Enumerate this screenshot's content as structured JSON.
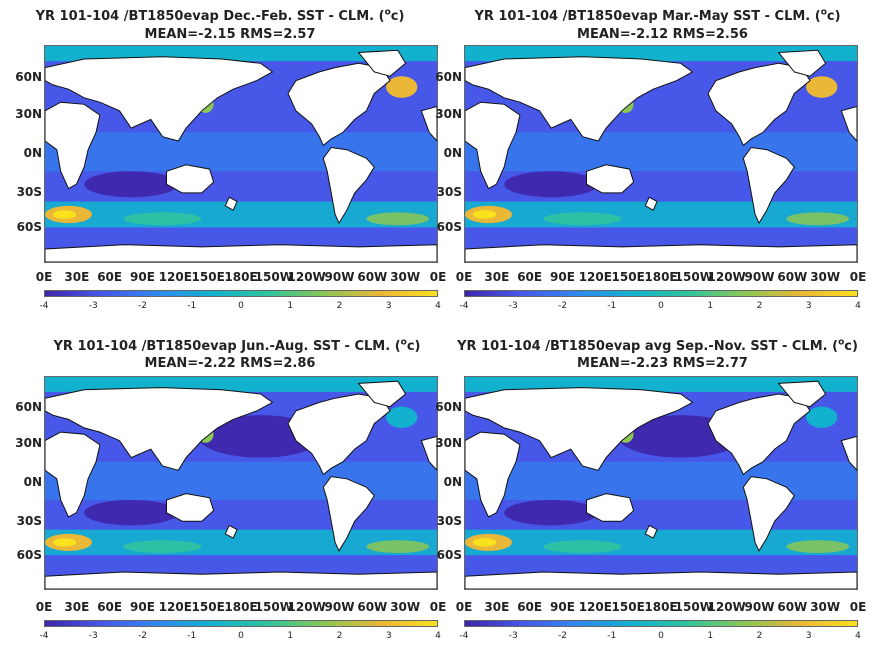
{
  "panels": [
    {
      "title_line1": "YR 101-104 /BT1850evap  Dec.-Feb. SST - CLM. (",
      "unit_sup": "o",
      "unit_end": "c)",
      "title_line2": "MEAN=-2.15   RMS=2.57"
    },
    {
      "title_line1": "YR 101-104 /BT1850evap Mar.-May SST - CLM. (",
      "unit_sup": "o",
      "unit_end": "c)",
      "title_line2": "MEAN=-2.12   RMS=2.56"
    },
    {
      "title_line1": "YR 101-104 /BT1850evap Jun.-Aug. SST - CLM. (",
      "unit_sup": "o",
      "unit_end": "c)",
      "title_line2": "MEAN=-2.22   RMS=2.86"
    },
    {
      "title_line1": "YR 101-104 /BT1850evap avg Sep.-Nov. SST - CLM. (",
      "unit_sup": "o",
      "unit_end": "c)",
      "title_line2": "MEAN=-2.23   RMS=2.77"
    }
  ],
  "lat_labels": [
    "60N",
    "30N",
    "0N",
    "30S",
    "60S"
  ],
  "lon_labels": [
    "0E",
    "30E",
    "60E",
    "90E",
    "120E",
    "150E",
    "180E",
    "150W",
    "120W",
    "90W",
    "60W",
    "30W",
    "0E"
  ],
  "colorbar": {
    "ticks": [
      "-4",
      "-3",
      "-2",
      "-1",
      "0",
      "1",
      "2",
      "3",
      "4"
    ],
    "range": [
      -4,
      4
    ],
    "colors": [
      "#3e26a8",
      "#4757e8",
      "#2f88f0",
      "#12b2cf",
      "#31c49c",
      "#8cc755",
      "#eab737",
      "#f9e11e"
    ]
  },
  "land_color": "#ffffff",
  "coast_color": "#111111"
}
